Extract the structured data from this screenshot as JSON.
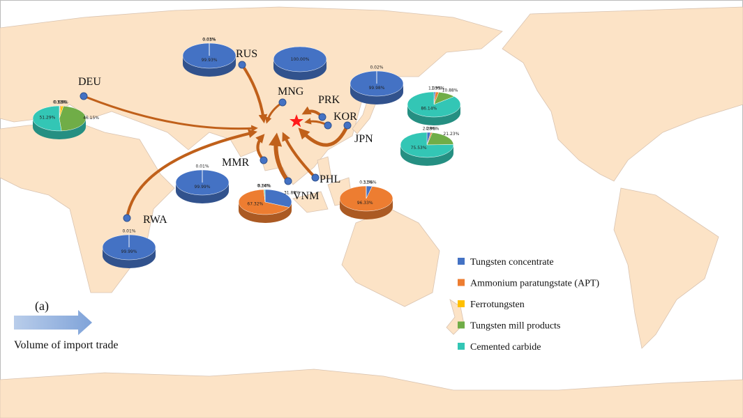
{
  "map": {
    "panel_label": "(a)",
    "arrow_caption": "Volume of import trade",
    "legend": [
      "Tungsten concentrate",
      "Ammonium paratungstate (APT)",
      "Ferrotungsten",
      "Tungsten mill products",
      "Cemented carbide"
    ],
    "colors": [
      "#4472c4",
      "#ed7d31",
      "#ffc000",
      "#70ad47",
      "#33c6b5"
    ],
    "countries": [
      {
        "code": "RUS",
        "shares": [
          99.93,
          0.01,
          0.03,
          0.03,
          null
        ],
        "value_labels": [
          "99.93%",
          "0.01%",
          "0.03%",
          "0.03%",
          null
        ]
      },
      {
        "code": "MNG",
        "shares": [
          100,
          null,
          null,
          null,
          null
        ],
        "value_labels": [
          "100.00%",
          null,
          null,
          null,
          null
        ]
      },
      {
        "code": "PRK",
        "shares": [
          99.98,
          0.02,
          null,
          null,
          null
        ],
        "value_labels": [
          "99.98%",
          "0.02%",
          null,
          null,
          null
        ]
      },
      {
        "code": "KOR",
        "shares": [
          1.03,
          1.95,
          null,
          10.88,
          86.14
        ],
        "value_labels": [
          "1.03%",
          "1.95%",
          null,
          "10.88%",
          "86.14%"
        ]
      },
      {
        "code": "JPN",
        "shares": [
          2.28,
          0.96,
          null,
          21.23,
          75.53
        ],
        "value_labels": [
          "2.28%",
          "0.96%",
          null,
          "21.23%",
          "75.53%"
        ]
      },
      {
        "code": "DEU",
        "shares": [
          0.31,
          0.65,
          1.6,
          46.15,
          51.29
        ],
        "value_labels": [
          "0.31%",
          "0.65%",
          "1.6%",
          "46.15%",
          "51.29%"
        ]
      },
      {
        "code": "MMR",
        "shares": [
          99.99,
          0.01,
          null,
          null,
          null
        ],
        "value_labels": [
          "99.99%",
          "0.01%",
          null,
          null,
          null
        ]
      },
      {
        "code": "VNM",
        "shares": [
          31.88,
          67.32,
          null,
          0.14,
          0.66
        ],
        "value_labels": [
          "31.88%",
          "67.32%",
          null,
          "0.14%",
          "0.66%"
        ]
      },
      {
        "code": "PHL",
        "shares": [
          3.56,
          96.33,
          null,
          null,
          0.11
        ],
        "value_labels": [
          "3.56%",
          "96.33%",
          null,
          null,
          "0.11%"
        ]
      },
      {
        "code": "RWA",
        "shares": [
          99.99,
          null,
          null,
          null,
          0.01
        ],
        "value_labels": [
          "99.99%",
          null,
          null,
          null,
          "0.01%"
        ]
      }
    ]
  }
}
